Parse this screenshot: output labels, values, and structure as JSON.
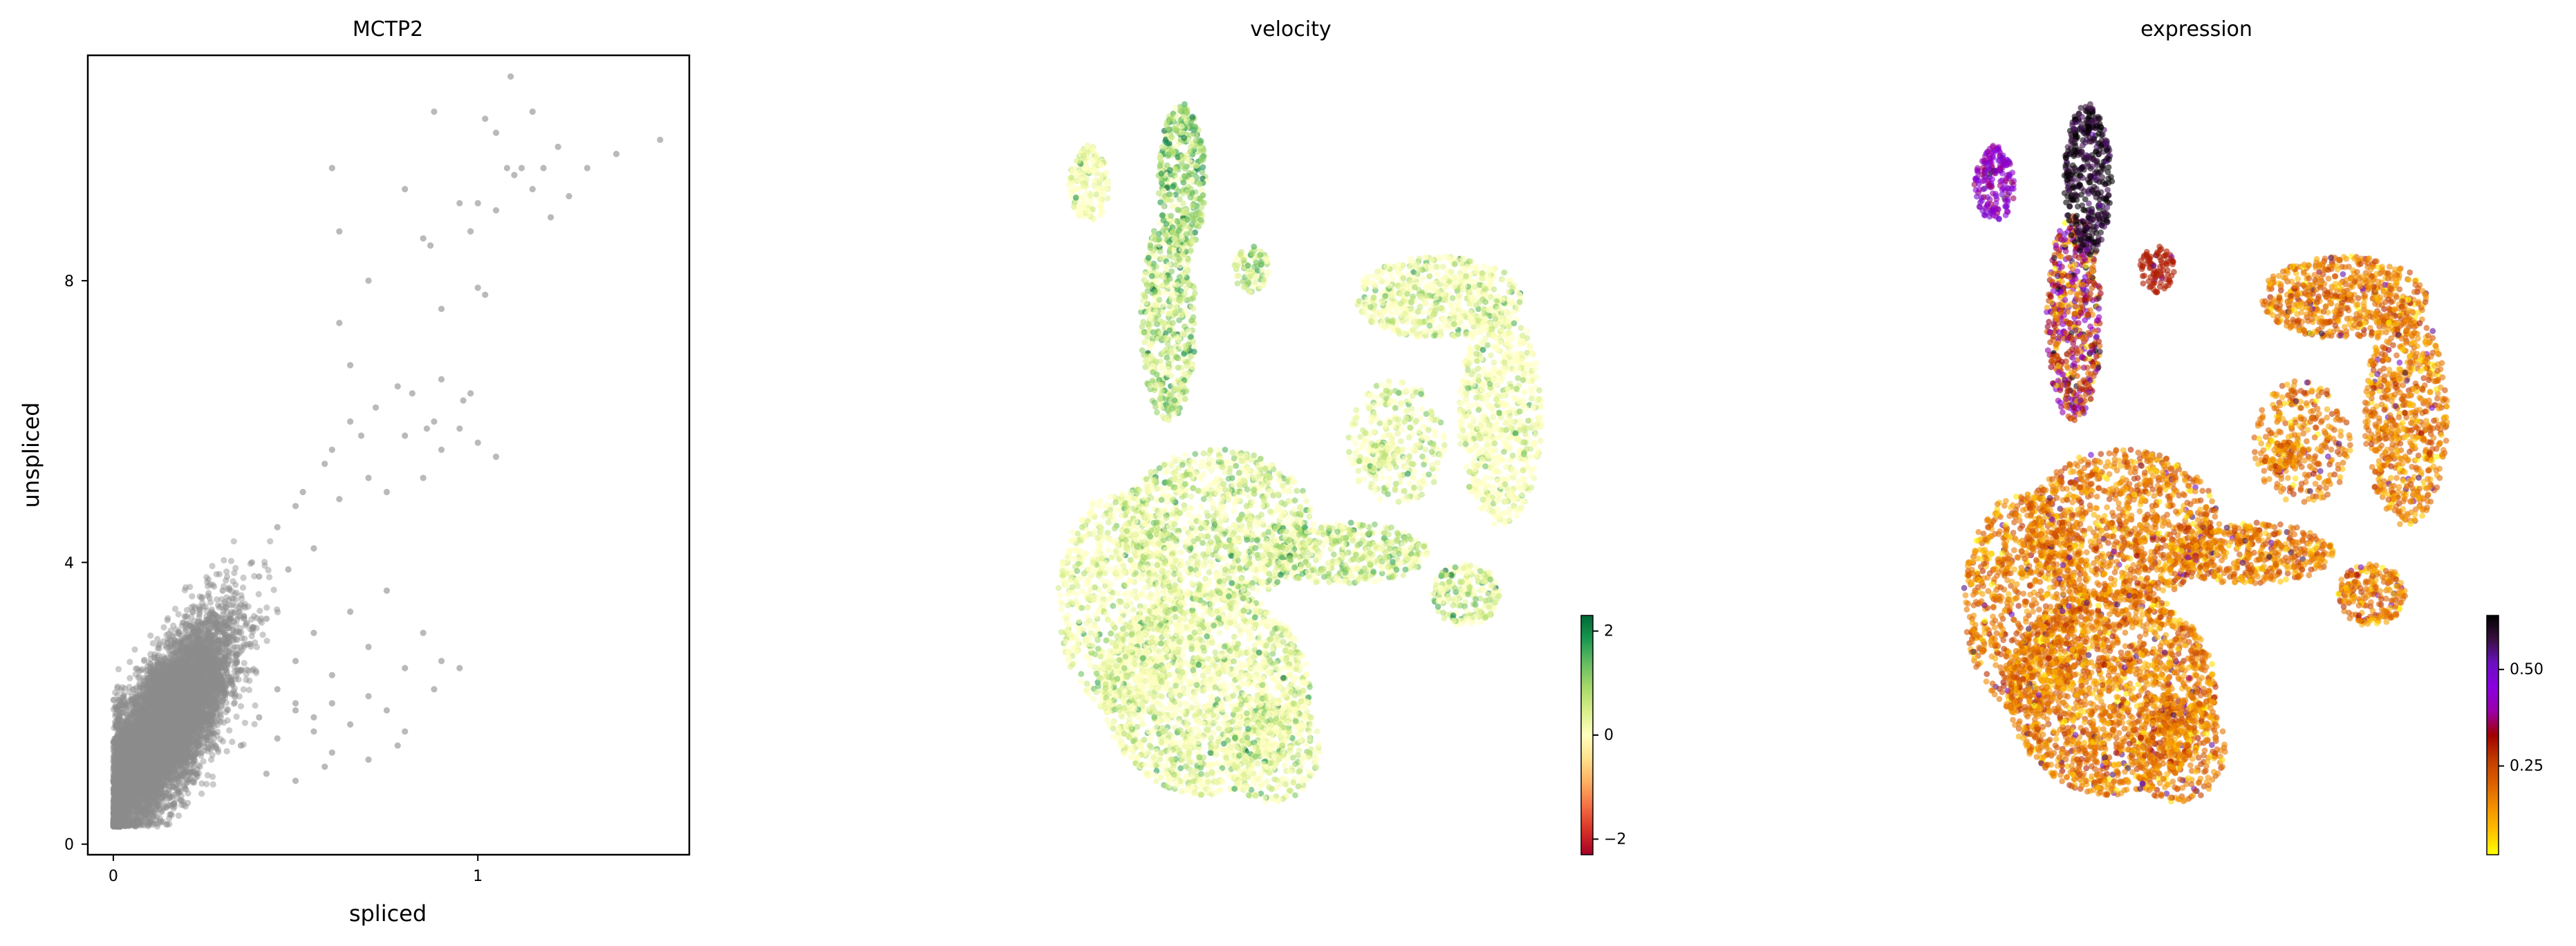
{
  "chart_data": [
    {
      "type": "scatter",
      "title": "MCTP2",
      "xlabel": "spliced",
      "ylabel": "unspliced",
      "xlim": [
        -0.07,
        1.58
      ],
      "ylim": [
        -0.15,
        11.2
      ],
      "xticks": [
        0,
        1
      ],
      "yticks": [
        0,
        4,
        8
      ],
      "xtick_labels": [
        "0",
        "1"
      ],
      "ytick_labels": [
        "0",
        "4",
        "8"
      ],
      "grid": false,
      "marker_color": "#8c8c8c",
      "series": [
        {
          "point_cloud": {
            "count": 9000,
            "x_center": 0.13,
            "x_sd": 0.095,
            "x_range": [
              0.0,
              0.62
            ],
            "y_center": 1.6,
            "y_sd": 0.75,
            "y_range": [
              0.25,
              4.3
            ],
            "correlation": 0.75
          },
          "sparse_points": [
            [
              0.2,
              2.4
            ],
            [
              0.25,
              3.1
            ],
            [
              0.3,
              3.6
            ],
            [
              0.35,
              3.4
            ],
            [
              0.38,
              4.0
            ],
            [
              0.4,
              3.8
            ],
            [
              0.42,
              3.2
            ],
            [
              0.45,
              4.5
            ],
            [
              0.48,
              3.9
            ],
            [
              0.5,
              4.8
            ],
            [
              0.52,
              5.0
            ],
            [
              0.55,
              4.2
            ],
            [
              0.58,
              5.4
            ],
            [
              0.6,
              5.6
            ],
            [
              0.62,
              4.9
            ],
            [
              0.65,
              6.0
            ],
            [
              0.68,
              5.8
            ],
            [
              0.7,
              5.2
            ],
            [
              0.72,
              6.2
            ],
            [
              0.75,
              5.0
            ],
            [
              0.78,
              6.5
            ],
            [
              0.8,
              5.8
            ],
            [
              0.82,
              6.4
            ],
            [
              0.85,
              5.2
            ],
            [
              0.88,
              6.0
            ],
            [
              0.9,
              6.6
            ],
            [
              0.95,
              5.9
            ],
            [
              1.0,
              5.7
            ],
            [
              1.05,
              5.5
            ],
            [
              0.45,
              2.2
            ],
            [
              0.5,
              2.6
            ],
            [
              0.55,
              3.0
            ],
            [
              0.6,
              2.4
            ],
            [
              0.65,
              3.3
            ],
            [
              0.7,
              2.8
            ],
            [
              0.75,
              3.6
            ],
            [
              0.8,
              2.5
            ],
            [
              0.85,
              3.0
            ],
            [
              0.9,
              2.6
            ],
            [
              0.95,
              2.5
            ],
            [
              0.35,
              1.4
            ],
            [
              0.4,
              1.8
            ],
            [
              0.45,
              1.5
            ],
            [
              0.5,
              1.9
            ],
            [
              0.55,
              1.6
            ],
            [
              0.6,
              2.0
            ],
            [
              0.65,
              1.7
            ],
            [
              0.7,
              2.1
            ],
            [
              0.75,
              1.9
            ],
            [
              0.8,
              1.6
            ],
            [
              0.42,
              1.0
            ],
            [
              0.5,
              0.9
            ],
            [
              0.58,
              1.1
            ],
            [
              0.62,
              8.7
            ],
            [
              0.6,
              9.6
            ],
            [
              0.62,
              7.4
            ],
            [
              0.65,
              6.8
            ],
            [
              0.7,
              8.0
            ],
            [
              0.8,
              9.3
            ],
            [
              0.85,
              8.6
            ],
            [
              0.87,
              8.5
            ],
            [
              0.88,
              10.4
            ],
            [
              0.9,
              7.6
            ],
            [
              0.95,
              9.1
            ],
            [
              0.98,
              8.7
            ],
            [
              1.0,
              7.9
            ],
            [
              1.02,
              7.8
            ],
            [
              1.02,
              10.3
            ],
            [
              1.05,
              10.1
            ],
            [
              1.0,
              9.1
            ],
            [
              1.05,
              9.0
            ],
            [
              1.08,
              9.6
            ],
            [
              1.09,
              10.9
            ],
            [
              1.1,
              9.5
            ],
            [
              1.12,
              9.6
            ],
            [
              1.15,
              10.4
            ],
            [
              1.15,
              9.3
            ],
            [
              1.18,
              9.6
            ],
            [
              1.2,
              8.9
            ],
            [
              1.22,
              9.9
            ],
            [
              1.25,
              9.2
            ],
            [
              1.3,
              9.6
            ],
            [
              1.38,
              9.8
            ],
            [
              1.5,
              10.0
            ],
            [
              0.98,
              6.4
            ],
            [
              0.96,
              6.3
            ],
            [
              0.9,
              5.6
            ],
            [
              0.86,
              5.9
            ],
            [
              0.5,
              2.0
            ],
            [
              0.88,
              2.2
            ],
            [
              0.6,
              1.3
            ],
            [
              0.7,
              1.2
            ],
            [
              0.78,
              1.4
            ],
            [
              0.55,
              1.8
            ]
          ]
        }
      ]
    },
    {
      "type": "scatter",
      "title": "velocity",
      "axes_visible": false,
      "colormap": [
        "#a50026",
        "#d73027",
        "#f46d43",
        "#fdae61",
        "#fee08b",
        "#ffffbf",
        "#d9ef8b",
        "#a6d96a",
        "#66bd63",
        "#1a9850",
        "#006837"
      ],
      "colorbar": {
        "ticks": [
          2,
          0,
          -2
        ],
        "tick_labels": [
          "2",
          "0",
          "−2"
        ],
        "range": [
          -2.3,
          2.3
        ]
      }
    },
    {
      "type": "scatter",
      "title": "expression",
      "axes_visible": false,
      "colormap": [
        "#ffff00",
        "#ffc000",
        "#f29000",
        "#db6000",
        "#c03a00",
        "#a00000",
        "#9a00a8",
        "#8a00e0",
        "#6a10c0",
        "#3a1040",
        "#000000"
      ],
      "colorbar": {
        "ticks": [
          0.5,
          0.25
        ],
        "tick_labels": [
          "0.50",
          "0.25"
        ],
        "range": [
          0.02,
          0.64
        ]
      }
    }
  ]
}
